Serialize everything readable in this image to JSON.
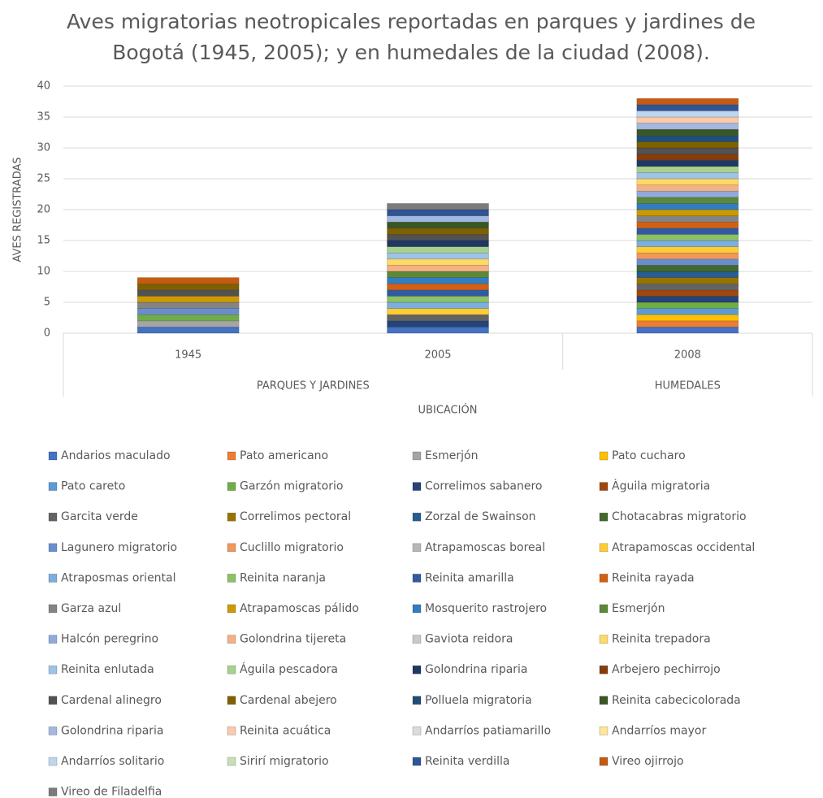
{
  "chart_data": {
    "type": "stacked_bar",
    "title": "Aves migratorias neotropicales reportadas en parques y jardines de Bogotá (1945, 2005); y en humedales de la ciudad (2008).",
    "xlabel": "UBICACIÓN",
    "ylabel": "AVES REGISTRADAS",
    "groups": [
      {
        "name": "PARQUES Y JARDINES",
        "categories": [
          "1945",
          "2005"
        ]
      },
      {
        "name": "HUMEDALES",
        "categories": [
          "2008"
        ]
      }
    ],
    "ylim": [
      0,
      40
    ],
    "yticks": [
      0,
      5,
      10,
      15,
      20,
      25,
      30,
      35,
      40
    ],
    "grid": true,
    "series": [
      {
        "name": "Andarios maculado",
        "color": "#4472c4",
        "values": [
          1,
          1,
          1
        ]
      },
      {
        "name": "Pato americano",
        "color": "#ed7d31",
        "values": [
          0,
          0,
          1
        ]
      },
      {
        "name": "Esmerjón",
        "color": "#a5a5a5",
        "values": [
          1,
          0,
          0
        ]
      },
      {
        "name": "Pato cucharo",
        "color": "#ffc000",
        "values": [
          0,
          0,
          1
        ]
      },
      {
        "name": "Pato careto",
        "color": "#5b9bd5",
        "values": [
          0,
          0,
          1
        ]
      },
      {
        "name": "Garzón migratorio",
        "color": "#70ad47",
        "values": [
          1,
          0,
          1
        ]
      },
      {
        "name": "Correlimos sabanero",
        "color": "#264478",
        "values": [
          0,
          1,
          1
        ]
      },
      {
        "name": "Àguila migratoria",
        "color": "#9e480e",
        "values": [
          0,
          0,
          1
        ]
      },
      {
        "name": "Garcita verde",
        "color": "#636363",
        "values": [
          0,
          1,
          1
        ]
      },
      {
        "name": "Correlimos pectoral",
        "color": "#997300",
        "values": [
          0,
          0,
          1
        ]
      },
      {
        "name": "Zorzal de Swainson",
        "color": "#255e91",
        "values": [
          0,
          0,
          1
        ]
      },
      {
        "name": "Chotacabras migratorio",
        "color": "#43682b",
        "values": [
          0,
          0,
          1
        ]
      },
      {
        "name": "Lagunero migratorio",
        "color": "#698ed0",
        "values": [
          1,
          0,
          1
        ]
      },
      {
        "name": "Cuclillo migratorio",
        "color": "#f1975a",
        "values": [
          0,
          0,
          1
        ]
      },
      {
        "name": "Atrapamoscas boreal",
        "color": "#b7b7b7",
        "values": [
          0,
          0,
          0
        ]
      },
      {
        "name": "Atrapamoscas occidental",
        "color": "#ffcd33",
        "values": [
          0,
          1,
          1
        ]
      },
      {
        "name": "Atraposmas oriental",
        "color": "#7cafdd",
        "values": [
          0,
          1,
          1
        ]
      },
      {
        "name": "Reinita naranja",
        "color": "#8cc168",
        "values": [
          0,
          1,
          1
        ]
      },
      {
        "name": "Reinita amarilla",
        "color": "#335aa1",
        "values": [
          0,
          1,
          1
        ]
      },
      {
        "name": "Reinita rayada",
        "color": "#d26012",
        "values": [
          0,
          1,
          1
        ]
      },
      {
        "name": "Garza azul",
        "color": "#848484",
        "values": [
          1,
          0,
          1
        ]
      },
      {
        "name": "Atrapamoscas pálido",
        "color": "#cc9a00",
        "values": [
          1,
          0,
          1
        ]
      },
      {
        "name": "Mosquerito rastrojero",
        "color": "#327dc2",
        "values": [
          0,
          1,
          1
        ]
      },
      {
        "name": "Esmerjón",
        "color": "#5a8a39",
        "values": [
          0,
          1,
          1
        ]
      },
      {
        "name": "Halcón peregrino",
        "color": "#8faadc",
        "values": [
          0,
          0,
          1
        ]
      },
      {
        "name": "Golondrina tijereta",
        "color": "#f4b183",
        "values": [
          0,
          1,
          1
        ]
      },
      {
        "name": "Gaviota reidora",
        "color": "#c9c9c9",
        "values": [
          0,
          0,
          0
        ]
      },
      {
        "name": "Reinita trepadora",
        "color": "#ffd966",
        "values": [
          0,
          1,
          1
        ]
      },
      {
        "name": "Reinita enlutada",
        "color": "#9dc3e6",
        "values": [
          0,
          1,
          1
        ]
      },
      {
        "name": "Águila pescadora",
        "color": "#a9d18e",
        "values": [
          0,
          1,
          1
        ]
      },
      {
        "name": "Golondrina riparia",
        "color": "#203864",
        "values": [
          0,
          1,
          1
        ]
      },
      {
        "name": "Arbejero pechirrojo",
        "color": "#843c0c",
        "values": [
          0,
          0,
          1
        ]
      },
      {
        "name": "Cardenal alinegro",
        "color": "#525252",
        "values": [
          1,
          1,
          1
        ]
      },
      {
        "name": "Cardenal abejero",
        "color": "#7f6000",
        "values": [
          1,
          1,
          1
        ]
      },
      {
        "name": "Polluela migratoria",
        "color": "#1f4e79",
        "values": [
          0,
          0,
          1
        ]
      },
      {
        "name": "Reinita cabecicolorada",
        "color": "#385723",
        "values": [
          0,
          1,
          1
        ]
      },
      {
        "name": "Golondrina riparia",
        "color": "#a2b8e1",
        "values": [
          0,
          1,
          1
        ]
      },
      {
        "name": "Reinita acuática",
        "color": "#f8cbad",
        "values": [
          0,
          0,
          1
        ]
      },
      {
        "name": "Andarríos patiamarillo",
        "color": "#dbdbdb",
        "values": [
          0,
          0,
          0
        ]
      },
      {
        "name": "Andarríos mayor",
        "color": "#ffe699",
        "values": [
          0,
          0,
          0
        ]
      },
      {
        "name": "Andarríos solitario",
        "color": "#bdd7ee",
        "values": [
          0,
          0,
          1
        ]
      },
      {
        "name": "Sirirí migratorio",
        "color": "#c5e0b4",
        "values": [
          0,
          0,
          0
        ]
      },
      {
        "name": "Reinita verdilla",
        "color": "#2f5597",
        "values": [
          0,
          1,
          1
        ]
      },
      {
        "name": "Vireo ojirrojo",
        "color": "#c55a11",
        "values": [
          1,
          0,
          1
        ]
      },
      {
        "name": "Vireo de Filadelfia",
        "color": "#7b7b7b",
        "values": [
          0,
          1,
          0
        ]
      }
    ]
  }
}
